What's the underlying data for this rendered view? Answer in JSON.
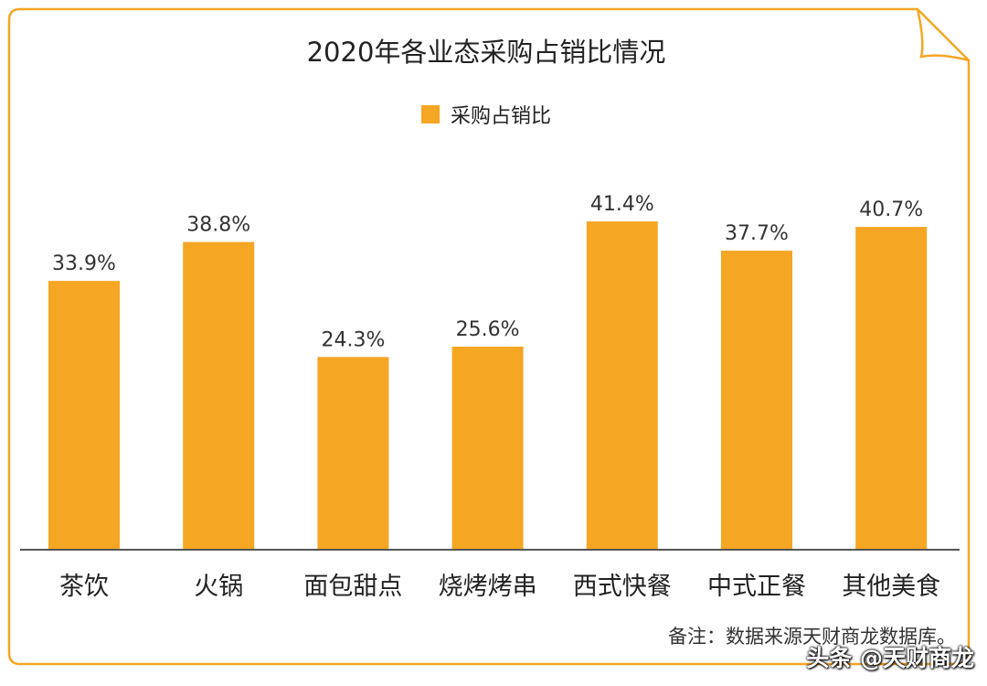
{
  "chart_data": {
    "type": "bar",
    "title": "2020年各业态采购占销比情况",
    "categories": [
      "茶饮",
      "火锅",
      "面包甜点",
      "烧烤烤串",
      "西式快餐",
      "中式正餐",
      "其他美食"
    ],
    "series": [
      {
        "name": "采购占销比",
        "values": [
          33.9,
          38.8,
          24.3,
          25.6,
          41.4,
          37.7,
          40.7
        ],
        "labels": [
          "33.9%",
          "38.8%",
          "24.3%",
          "25.6%",
          "41.4%",
          "37.7%",
          "40.7%"
        ]
      }
    ],
    "ylim": [
      0,
      50
    ],
    "grid": false,
    "legend_position": "top-center",
    "bar_color": "#F5A623"
  },
  "colors": {
    "border": "#F5A623",
    "axis": "#555555"
  },
  "note": "备注：数据来源天财商龙数据库。",
  "watermark": "头条 @天财商龙"
}
